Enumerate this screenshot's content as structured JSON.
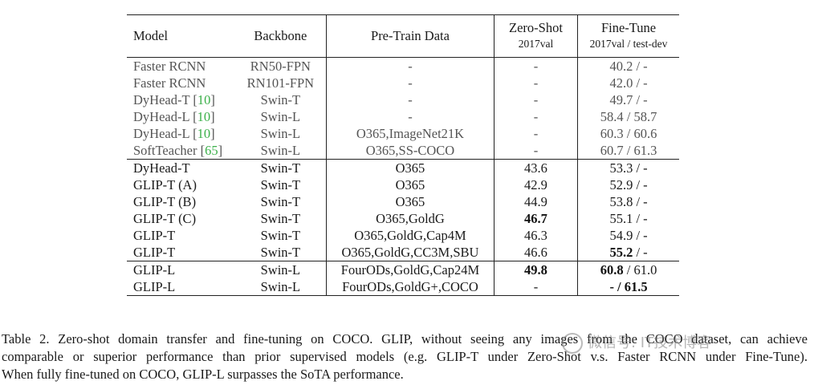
{
  "header": {
    "model": "Model",
    "backbone": "Backbone",
    "pretrain": "Pre-Train Data",
    "zeroshot": "Zero-Shot",
    "zeroshot_sub": "2017val",
    "finetune": "Fine-Tune",
    "finetune_sub": "2017val / test-dev"
  },
  "group1": [
    {
      "model": "Faster RCNN",
      "cite": "",
      "backbone": "RN50-FPN",
      "data": "-",
      "zs": "-",
      "ft": "40.2 / -"
    },
    {
      "model": "Faster RCNN",
      "cite": "",
      "backbone": "RN101-FPN",
      "data": "-",
      "zs": "-",
      "ft": "42.0 / -"
    },
    {
      "model": "DyHead-T ",
      "cite": "10",
      "backbone": "Swin-T",
      "data": "-",
      "zs": "-",
      "ft": "49.7 / -"
    },
    {
      "model": "DyHead-L ",
      "cite": "10",
      "backbone": "Swin-L",
      "data": "-",
      "zs": "-",
      "ft": "58.4 / 58.7"
    },
    {
      "model": "DyHead-L ",
      "cite": "10",
      "backbone": "Swin-L",
      "data": "O365,ImageNet21K",
      "zs": "-",
      "ft": "60.3 / 60.6"
    },
    {
      "model": "SoftTeacher ",
      "cite": "65",
      "backbone": "Swin-L",
      "data": "O365,SS-COCO",
      "zs": "-",
      "ft": "60.7 / 61.3"
    }
  ],
  "group2": [
    {
      "model": "DyHead-T",
      "backbone": "Swin-T",
      "data": "O365",
      "zs": "43.6",
      "ft_a": "53.3",
      "ft_b": " / -"
    },
    {
      "model": "GLIP-T (A)",
      "backbone": "Swin-T",
      "data": "O365",
      "zs": "42.9",
      "ft_a": "52.9",
      "ft_b": " / -"
    },
    {
      "model": "GLIP-T (B)",
      "backbone": "Swin-T",
      "data": "O365",
      "zs": "44.9",
      "ft_a": "53.8",
      "ft_b": " / -"
    },
    {
      "model": "GLIP-T (C)",
      "backbone": "Swin-T",
      "data": "O365,GoldG",
      "zs": "46.7",
      "ft_a": "55.1",
      "ft_b": " / -"
    },
    {
      "model": "GLIP-T",
      "backbone": "Swin-T",
      "data": "O365,GoldG,Cap4M",
      "zs": "46.3",
      "ft_a": "54.9",
      "ft_b": " / -"
    },
    {
      "model": "GLIP-T",
      "backbone": "Swin-T",
      "data": "O365,GoldG,CC3M,SBU",
      "zs": "46.6",
      "ft_a": "55.2",
      "ft_b": " / -"
    }
  ],
  "group3": [
    {
      "model": "GLIP-L",
      "backbone": "Swin-L",
      "data": "FourODs,GoldG,Cap24M",
      "zs": "49.8",
      "ft_a": "60.8",
      "ft_b": " / 61.0"
    },
    {
      "model": "GLIP-L",
      "backbone": "Swin-L",
      "data": "FourODs,GoldG+,COCO",
      "zs": "-",
      "ft_a": "- / ",
      "ft_b": "61.5"
    }
  ],
  "caption": {
    "line1": "Table 2. Zero-shot domain transfer and fine-tuning on COCO. GLIP, without seeing any images from the COCO dataset, can achieve",
    "line2": "comparable or superior performance than prior supervised models (e.g. GLIP-T under Zero-Shot v.s. Faster RCNN under Fine-Tune).",
    "line3": "When fully fine-tuned on COCO, GLIP-L surpasses the SoTA performance."
  },
  "watermark": "微信号: IT技术博客"
}
